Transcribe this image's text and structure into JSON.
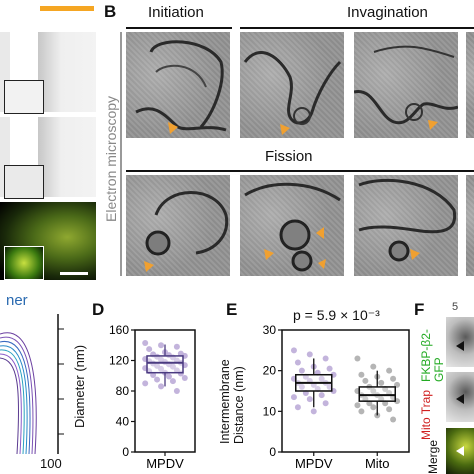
{
  "panels": {
    "B": {
      "letter": "B",
      "stages": {
        "initiation": "Initiation",
        "invagination": "Invagination",
        "fission": "Fission"
      },
      "side_label": "Electron microscopy"
    },
    "C": {
      "partial_label": "ner"
    },
    "C_axis": {
      "tick_100": "100"
    },
    "D": {
      "letter": "D",
      "ylabel": "Diameter (nm)",
      "xcat": "MPDV"
    },
    "E": {
      "letter": "E",
      "ylabel": "Intermembrane Distance (nm)",
      "annotation": "p = 5.9 × 10⁻³",
      "xcats": [
        "MPDV",
        "Mito"
      ]
    },
    "F": {
      "letter": "F",
      "top_partial": "5",
      "row1_label": "FKBP-β2-GFP",
      "row2_label": "Mito Trap",
      "row3_label": "Merge"
    }
  },
  "colors": {
    "accent": "#f5a623",
    "arrow": "#f0a030",
    "green": "#22aa22",
    "red": "#d02020",
    "box": "#111111"
  },
  "chart_data": [
    {
      "type": "box",
      "panel": "D",
      "ylabel": "Diameter (nm)",
      "categories": [
        "MPDV"
      ],
      "ylim": [
        0,
        160
      ],
      "yticks": [
        0,
        40,
        80,
        120,
        160
      ],
      "box": {
        "q1": 104,
        "median": 117,
        "q3": 126,
        "whisker_low": 86,
        "whisker_high": 141
      },
      "points": [
        143,
        140,
        138,
        135,
        131,
        129,
        128,
        127,
        126,
        125,
        124,
        122,
        121,
        120,
        119,
        118,
        117,
        116,
        115,
        114,
        113,
        112,
        110,
        109,
        107,
        106,
        104,
        103,
        101,
        99,
        97,
        95,
        93,
        90,
        86,
        80
      ]
    },
    {
      "type": "box",
      "panel": "E",
      "ylabel": "Intermembrane Distance (nm)",
      "annotation": "p = 5.9 × 10⁻³",
      "categories": [
        "MPDV",
        "Mito"
      ],
      "ylim": [
        0,
        30
      ],
      "yticks": [
        0,
        10,
        20,
        30
      ],
      "boxes": [
        {
          "q1": 15,
          "median": 17,
          "q3": 19,
          "whisker_low": 11,
          "whisker_high": 23
        },
        {
          "q1": 12.5,
          "median": 14,
          "q3": 16,
          "whisker_low": 9,
          "whisker_high": 20
        }
      ],
      "points": [
        [
          25,
          24,
          23,
          22,
          21,
          20.5,
          20,
          19.5,
          19,
          18.5,
          18,
          18,
          17.5,
          17,
          17,
          16.5,
          16,
          16,
          15.5,
          15,
          14.5,
          14,
          13.5,
          13,
          12,
          11,
          10
        ],
        [
          23,
          21,
          20,
          19,
          18.5,
          18,
          17.5,
          17,
          16.5,
          16,
          15.5,
          15,
          15,
          14.5,
          14,
          14,
          13.5,
          13,
          13,
          12.5,
          12,
          12,
          11.5,
          11,
          10.5,
          10,
          9,
          8
        ]
      ]
    }
  ]
}
